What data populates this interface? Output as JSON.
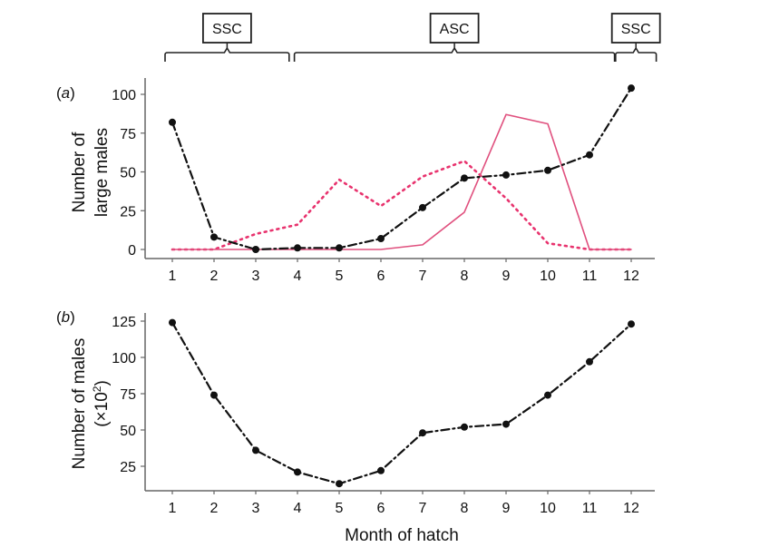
{
  "season_annotations": [
    {
      "label": "SSC",
      "from_month": 1,
      "to_month": 3.8
    },
    {
      "label": "ASC",
      "from_month": 4.1,
      "to_month": 11.6
    },
    {
      "label": "SSC",
      "from_month": 11.8,
      "to_month": 12.6
    }
  ],
  "chart_data": [
    {
      "type": "line",
      "panel_label": "(a)",
      "panel_letter": "a",
      "title": "",
      "xlabel": "",
      "ylabel_lines": [
        "Number of",
        "large males"
      ],
      "x": [
        1,
        2,
        3,
        4,
        5,
        6,
        7,
        8,
        9,
        10,
        11,
        12
      ],
      "xticks": [
        "1",
        "2",
        "3",
        "4",
        "5",
        "6",
        "7",
        "8",
        "9",
        "10",
        "11",
        "12"
      ],
      "yticks": [
        0,
        25,
        50,
        75,
        100
      ],
      "ylim": [
        -5,
        110
      ],
      "grid": false,
      "series": [
        {
          "name": "dash-dot black with markers",
          "style": "dashdot",
          "color": "#111111",
          "markers": true,
          "values": [
            82,
            8,
            0,
            1,
            1,
            7,
            27,
            46,
            48,
            51,
            61,
            104
          ]
        },
        {
          "name": "dotted pink",
          "style": "dotted",
          "color": "#e8336e",
          "markers": false,
          "values": [
            0,
            0,
            10,
            16,
            45,
            28,
            47,
            57,
            33,
            4,
            0,
            0
          ]
        },
        {
          "name": "solid pink",
          "style": "solid",
          "color": "#e0507e",
          "markers": false,
          "values": [
            0,
            0,
            0,
            0,
            0,
            0,
            3,
            24,
            87,
            81,
            0,
            0
          ]
        }
      ]
    },
    {
      "type": "line",
      "panel_label": "(b)",
      "panel_letter": "b",
      "title": "",
      "xlabel": "Month of hatch",
      "ylabel_lines": [
        "Number of males",
        "(×10",
        "2",
        ")"
      ],
      "x": [
        1,
        2,
        3,
        4,
        5,
        6,
        7,
        8,
        9,
        10,
        11,
        12
      ],
      "xticks": [
        "1",
        "2",
        "3",
        "4",
        "5",
        "6",
        "7",
        "8",
        "9",
        "10",
        "11",
        "12"
      ],
      "yticks": [
        25,
        50,
        75,
        100,
        125
      ],
      "ylim": [
        8,
        130
      ],
      "grid": false,
      "series": [
        {
          "name": "dash-dot black with markers",
          "style": "dashdot",
          "color": "#111111",
          "markers": true,
          "values": [
            124,
            74,
            36,
            21,
            13,
            22,
            48,
            52,
            54,
            74,
            97,
            123
          ]
        }
      ]
    }
  ]
}
